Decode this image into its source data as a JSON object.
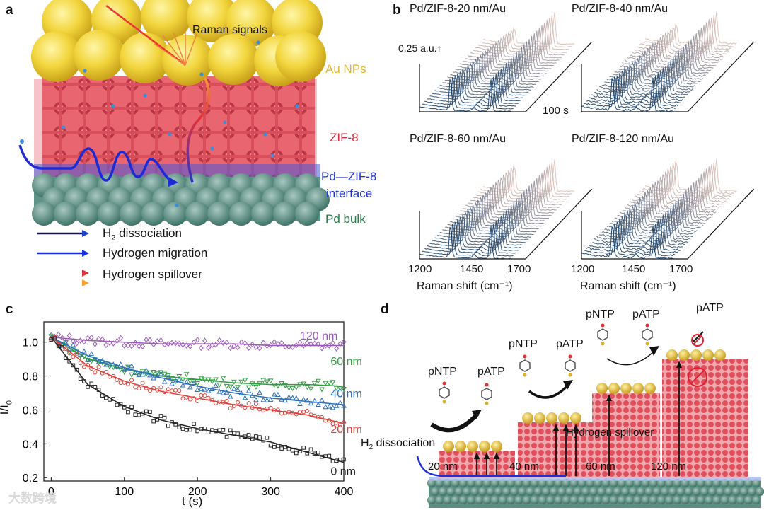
{
  "panel_a": {
    "label": "a",
    "raman": "Raman signals",
    "au": "Au NPs",
    "zif": "ZIF-8",
    "interface_line1": "Pd—ZIF-8",
    "interface_line2": "interface",
    "pdbulk": "Pd bulk",
    "legend": [
      {
        "label_main": "H",
        "label_sub": "2",
        "label_rest": " dissociation"
      },
      {
        "label_main": "Hydrogen migration",
        "label_sub": "",
        "label_rest": ""
      },
      {
        "label_main": "Hydrogen spillover",
        "label_sub": "",
        "label_rest": ""
      }
    ]
  },
  "panel_b": {
    "label": "b",
    "scale_label": "0.25 a.u.",
    "time_label": "100 s",
    "plots": [
      {
        "title": "Pd/ZIF-8-20 nm/Au"
      },
      {
        "title": "Pd/ZIF-8-40 nm/Au"
      },
      {
        "title": "Pd/ZIF-8-60 nm/Au"
      },
      {
        "title": "Pd/ZIF-8-120 nm/Au"
      }
    ],
    "xticks": [
      "1200",
      "1450",
      "1700"
    ],
    "xlabel": "Raman shift (cm⁻¹)"
  },
  "panel_c": {
    "label": "c",
    "ylabel_main": "I/I",
    "ylabel_sub": "0",
    "xlabel": "t (s)"
  },
  "chart_data": {
    "type": "scatter",
    "xlabel": "t (s)",
    "ylabel": "I/I0",
    "xlim": [
      -10,
      400
    ],
    "ylim": [
      0.18,
      1.12
    ],
    "xticks": [
      0,
      100,
      200,
      300,
      400
    ],
    "yticks": [
      0.2,
      0.4,
      0.6,
      0.8,
      1.0
    ],
    "ytick_labels": [
      "0.2",
      "0.4",
      "0.6",
      "0.8",
      "1.0"
    ],
    "series": [
      {
        "name": "120 nm",
        "color": "#9b59b6",
        "marker": "diamond",
        "x": [
          0,
          50,
          100,
          150,
          200,
          250,
          300,
          350,
          400
        ],
        "fit": [
          1.03,
          1.01,
          1.0,
          0.99,
          0.99,
          0.99,
          0.98,
          0.98,
          0.98
        ]
      },
      {
        "name": "60 nm",
        "color": "#2e9e3e",
        "marker": "triangle-down",
        "x": [
          0,
          50,
          100,
          150,
          200,
          250,
          300,
          350,
          400
        ],
        "fit": [
          1.03,
          0.9,
          0.84,
          0.8,
          0.78,
          0.76,
          0.75,
          0.75,
          0.74
        ]
      },
      {
        "name": "40 nm",
        "color": "#2a6ebb",
        "marker": "triangle",
        "x": [
          0,
          50,
          100,
          150,
          200,
          250,
          300,
          350,
          400
        ],
        "fit": [
          1.03,
          0.92,
          0.85,
          0.79,
          0.74,
          0.7,
          0.67,
          0.65,
          0.63
        ]
      },
      {
        "name": "20 nm",
        "color": "#e0403a",
        "marker": "circle",
        "x": [
          0,
          50,
          100,
          150,
          200,
          250,
          300,
          350,
          400
        ],
        "fit": [
          1.03,
          0.86,
          0.77,
          0.71,
          0.67,
          0.63,
          0.6,
          0.57,
          0.52
        ]
      },
      {
        "name": "0 nm",
        "color": "#222222",
        "marker": "square",
        "x": [
          0,
          50,
          100,
          150,
          200,
          250,
          300,
          350,
          400
        ],
        "fit": [
          1.03,
          0.75,
          0.62,
          0.54,
          0.49,
          0.45,
          0.41,
          0.35,
          0.29
        ]
      }
    ]
  },
  "panel_d": {
    "label": "d",
    "h2": "H",
    "h2_sub": "2",
    "h2_rest": " dissociation",
    "spillover": "Hydrogen spillover",
    "thickness": [
      "20 nm",
      "40 nm",
      "60 nm",
      "120 nm"
    ],
    "molecules": [
      {
        "text": "pNTP"
      },
      {
        "text": "pATP"
      },
      {
        "text": "pNTP"
      },
      {
        "text": "pATP"
      },
      {
        "text": "pNTP"
      },
      {
        "text": "pATP"
      },
      {
        "text": "pATP"
      }
    ]
  },
  "watermark": "大数跨境"
}
